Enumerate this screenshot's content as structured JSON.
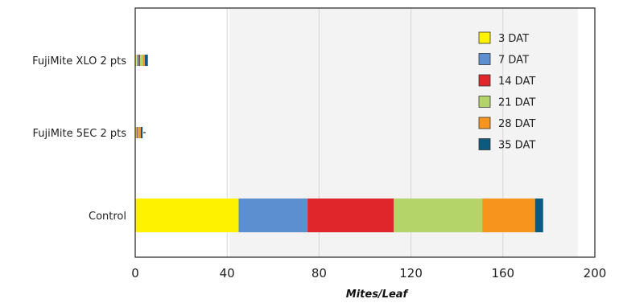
{
  "colors": {
    "3 DAT": "#fff200",
    "7 DAT": "#5b8fd0",
    "14 DAT": "#e0262b",
    "21 DAT": "#b4d46a",
    "28 DAT": "#f7941d",
    "35 DAT": "#0d5a80"
  },
  "chart_data": {
    "type": "bar",
    "orientation": "horizontal",
    "stacked": true,
    "categories": [
      "FujiMite XLO 2 pts",
      "FujiMite 5EC 2 pts",
      "Control"
    ],
    "series": [
      {
        "name": "3 DAT",
        "values": [
          0.8,
          0.5,
          45
        ]
      },
      {
        "name": "7 DAT",
        "values": [
          0.8,
          0.4,
          30
        ]
      },
      {
        "name": "14 DAT",
        "values": [
          0.5,
          0.3,
          37.5
        ]
      },
      {
        "name": "21 DAT",
        "values": [
          1.2,
          0.3,
          38.5
        ]
      },
      {
        "name": "28 DAT",
        "values": [
          0.9,
          0.9,
          23
        ]
      },
      {
        "name": "35 DAT",
        "values": [
          1.3,
          0.8,
          3.5
        ]
      }
    ],
    "error_bar": {
      "category": "FujiMite 5EC 2 pts",
      "low": 3.5,
      "high": 4.5
    },
    "xlabel": "Mites/Leaf",
    "ylabel": "",
    "xlim": [
      0,
      200
    ],
    "xticks": [
      0,
      40,
      80,
      120,
      160,
      200
    ],
    "grid": "vertical",
    "legend_position": "top-right"
  }
}
